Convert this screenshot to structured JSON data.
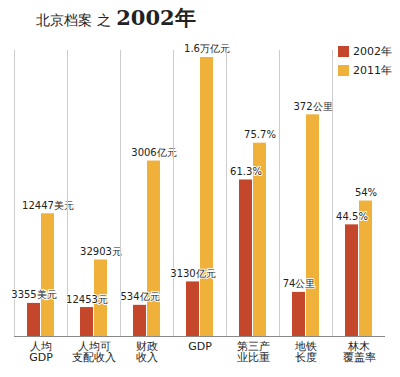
{
  "chart_data": [
    {
      "type": "bar",
      "title": "北京档案 之 2002年",
      "legend": "top-right",
      "categories": [
        "人均\nGDP"
      ],
      "series": [
        {
          "name": "2002年",
          "color": "#c4472b",
          "values": [
            3355
          ],
          "value_labels": [
            "3355美元"
          ]
        },
        {
          "name": "2011年",
          "color": "#efb13a",
          "values": [
            12447
          ],
          "value_labels": [
            "12447美元"
          ]
        }
      ],
      "ylim": [
        0,
        29000
      ],
      "data_labels": true,
      "tick_labels": "x"
    },
    {
      "type": "bar",
      "categories": [
        "人均可\n支配收入"
      ],
      "series": [
        {
          "name": "2002年",
          "color": "#c4472b",
          "values": [
            12453
          ],
          "value_labels": [
            "12453元"
          ]
        },
        {
          "name": "2011年",
          "color": "#efb13a",
          "values": [
            32903
          ],
          "value_labels": [
            "32903元"
          ]
        }
      ],
      "ylim": [
        0,
        123000
      ],
      "data_labels": true,
      "tick_labels": "x"
    },
    {
      "type": "bar",
      "categories": [
        "财政\n收入"
      ],
      "series": [
        {
          "name": "2002年",
          "color": "#c4472b",
          "values": [
            534
          ],
          "value_labels": [
            "534亿元"
          ]
        },
        {
          "name": "2011年",
          "color": "#efb13a",
          "values": [
            3006
          ],
          "value_labels": [
            "3006亿元"
          ]
        }
      ],
      "ylim": [
        0,
        4900
      ],
      "data_labels": true,
      "tick_labels": "x"
    },
    {
      "type": "bar",
      "categories": [
        "GDP"
      ],
      "series": [
        {
          "name": "2002年",
          "color": "#c4472b",
          "values": [
            3130
          ],
          "value_labels": [
            "3130亿元"
          ]
        },
        {
          "name": "2011年",
          "color": "#efb13a",
          "values": [
            16000
          ],
          "value_labels": [
            "1.6万亿元"
          ]
        }
      ],
      "ylim": [
        0,
        16400
      ],
      "data_labels": true,
      "tick_labels": "x"
    },
    {
      "type": "bar",
      "categories": [
        "第三产\n业比重"
      ],
      "series": [
        {
          "name": "2002年",
          "color": "#c4472b",
          "values": [
            61.3
          ],
          "value_labels": [
            "61.3%"
          ]
        },
        {
          "name": "2011年",
          "color": "#efb13a",
          "values": [
            75.7
          ],
          "value_labels": [
            "75.7%"
          ]
        }
      ],
      "ylim": [
        0,
        112
      ],
      "data_labels": true,
      "tick_labels": "x"
    },
    {
      "type": "bar",
      "categories": [
        "地铁\n长度"
      ],
      "series": [
        {
          "name": "2002年",
          "color": "#c4472b",
          "values": [
            74
          ],
          "value_labels": [
            "74公里"
          ]
        },
        {
          "name": "2011年",
          "color": "#efb13a",
          "values": [
            372
          ],
          "value_labels": [
            "372公里"
          ]
        }
      ],
      "ylim": [
        0,
        480
      ],
      "data_labels": true,
      "tick_labels": "x"
    },
    {
      "type": "bar",
      "categories": [
        "林木\n覆盖率"
      ],
      "series": [
        {
          "name": "2002年",
          "color": "#c4472b",
          "values": [
            44.5
          ],
          "value_labels": [
            "44.5%"
          ]
        },
        {
          "name": "2011年",
          "color": "#efb13a",
          "values": [
            54
          ],
          "value_labels": [
            "54%"
          ]
        }
      ],
      "ylim": [
        0,
        114
      ],
      "data_labels": true,
      "tick_labels": "x"
    }
  ]
}
